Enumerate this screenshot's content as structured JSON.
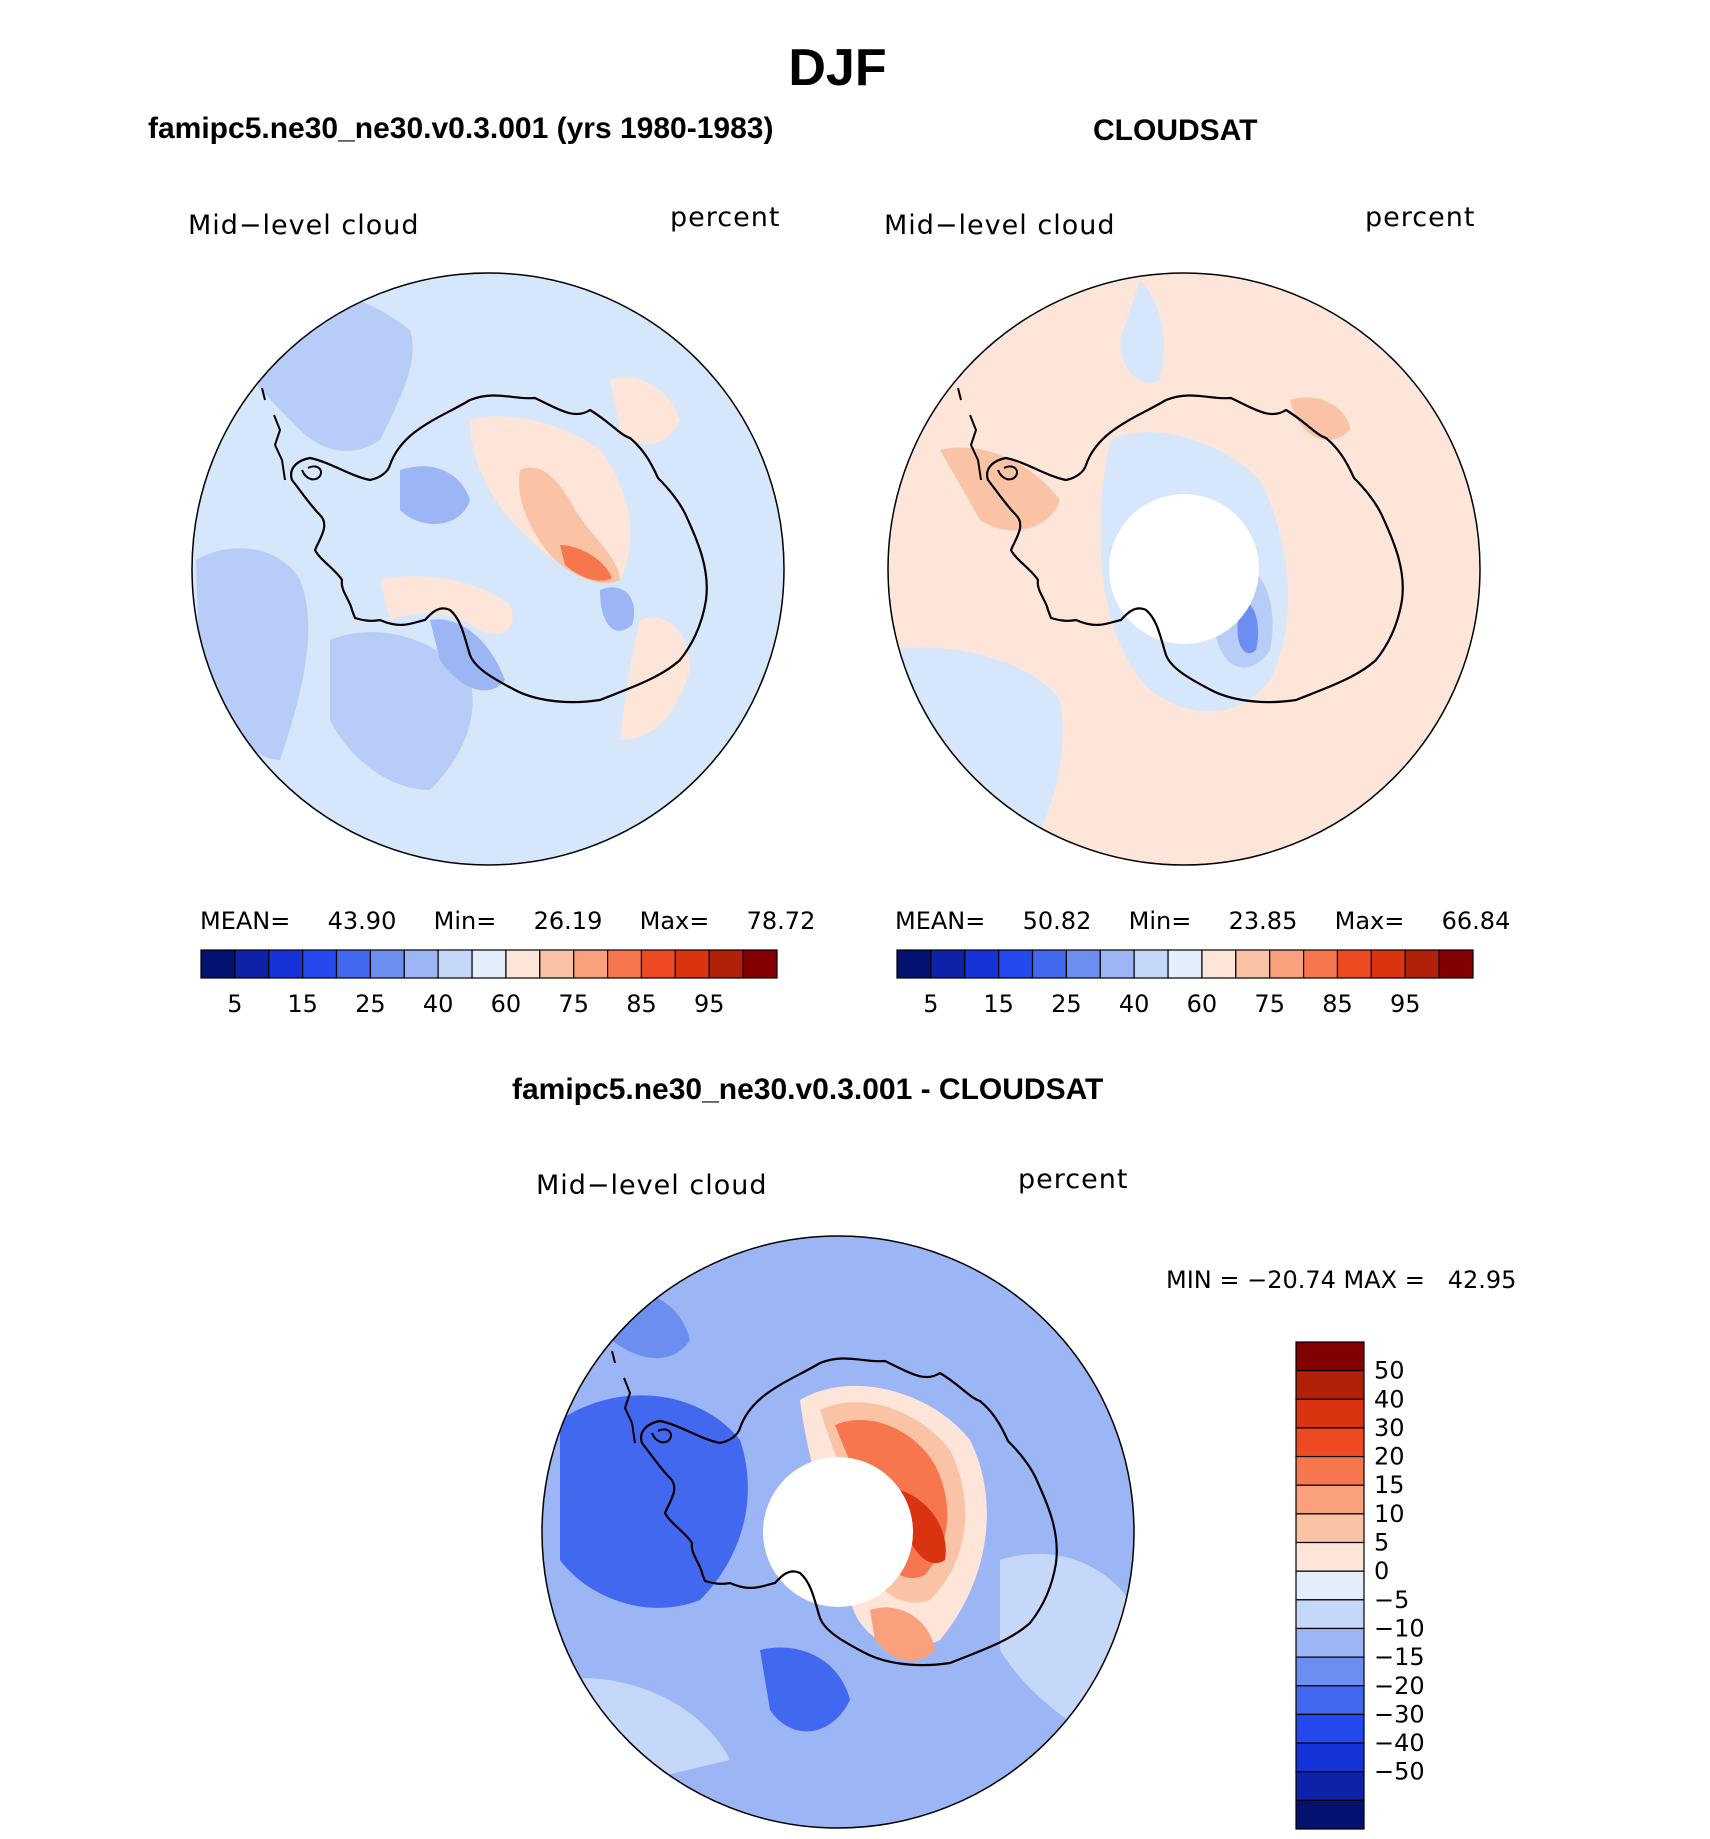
{
  "title": "DJF",
  "panels": [
    {
      "id": "model",
      "header": "famipc5.ne30_ne30.v0.3.001 (yrs 1980-1983)",
      "left_label": "Mid−level cloud",
      "right_label": "percent",
      "stats": {
        "mean_label": "MEAN=",
        "mean": "43.90",
        "min_label": "Min=",
        "min": "26.19",
        "max_label": "Max=",
        "max": "78.72"
      }
    },
    {
      "id": "obs",
      "header": "CLOUDSAT",
      "left_label": "Mid−level cloud",
      "right_label": "percent",
      "stats": {
        "mean_label": "MEAN=",
        "mean": "50.82",
        "min_label": "Min=",
        "min": "23.85",
        "max_label": "Max=",
        "max": "66.84"
      }
    },
    {
      "id": "diff",
      "header": "famipc5.ne30_ne30.v0.3.001 - CLOUDSAT",
      "left_label": "Mid−level cloud",
      "right_label": "percent",
      "minmax": "MIN = −20.74 MAX =   42.95"
    }
  ],
  "chart_data": [
    {
      "type": "heatmap",
      "title": "famipc5.ne30_ne30.v0.3.001 (yrs 1980-1983)",
      "variable": "Mid−level cloud",
      "units": "percent",
      "region": "south polar stereographic",
      "colorbar_orientation": "horizontal",
      "levels": [
        5,
        10,
        15,
        20,
        25,
        30,
        40,
        50,
        60,
        70,
        75,
        80,
        85,
        90,
        95
      ],
      "tick_labels": [
        "5",
        "15",
        "25",
        "40",
        "60",
        "75",
        "85",
        "95"
      ],
      "colors": [
        "#03126e",
        "#0d22a8",
        "#1533d6",
        "#2349ee",
        "#4268f0",
        "#6b8ef0",
        "#9bb5f5",
        "#c6d8f9",
        "#e3eefd",
        "#fde6d9",
        "#fbc3a6",
        "#f9a07c",
        "#f6764e",
        "#ee4a22",
        "#d9330f",
        "#b12008",
        "#820000"
      ],
      "mean": 43.9,
      "min": 26.19,
      "max": 78.72
    },
    {
      "type": "heatmap",
      "title": "CLOUDSAT",
      "variable": "Mid−level cloud",
      "units": "percent",
      "region": "south polar stereographic",
      "colorbar_orientation": "horizontal",
      "levels": [
        5,
        10,
        15,
        20,
        25,
        30,
        40,
        50,
        60,
        70,
        75,
        80,
        85,
        90,
        95
      ],
      "tick_labels": [
        "5",
        "15",
        "25",
        "40",
        "60",
        "75",
        "85",
        "95"
      ],
      "colors": [
        "#03126e",
        "#0d22a8",
        "#1533d6",
        "#2349ee",
        "#4268f0",
        "#6b8ef0",
        "#9bb5f5",
        "#c6d8f9",
        "#e3eefd",
        "#fde6d9",
        "#fbc3a6",
        "#f9a07c",
        "#f6764e",
        "#ee4a22",
        "#d9330f",
        "#b12008",
        "#820000"
      ],
      "mean": 50.82,
      "min": 23.85,
      "max": 66.84
    },
    {
      "type": "heatmap",
      "title": "famipc5.ne30_ne30.v0.3.001 - CLOUDSAT",
      "variable": "Mid−level cloud",
      "units": "percent",
      "region": "south polar stereographic",
      "colorbar_orientation": "vertical",
      "levels": [
        50,
        40,
        30,
        20,
        15,
        10,
        5,
        0,
        -5,
        -10,
        -15,
        -20,
        -30,
        -40,
        -50
      ],
      "tick_labels": [
        "50",
        "40",
        "30",
        "20",
        "15",
        "10",
        "5",
        "0",
        "−5",
        "−10",
        "−15",
        "−20",
        "−30",
        "−40",
        "−50"
      ],
      "colors": [
        "#820000",
        "#b12008",
        "#d9330f",
        "#ee4a22",
        "#f6764e",
        "#f9a07c",
        "#fbc3a6",
        "#fde6d9",
        "#e3eefd",
        "#c6d8f9",
        "#9bb5f5",
        "#6b8ef0",
        "#4268f0",
        "#2349ee",
        "#1533d6",
        "#0d22a8",
        "#03126e"
      ],
      "min": -20.74,
      "max": 42.95
    }
  ]
}
